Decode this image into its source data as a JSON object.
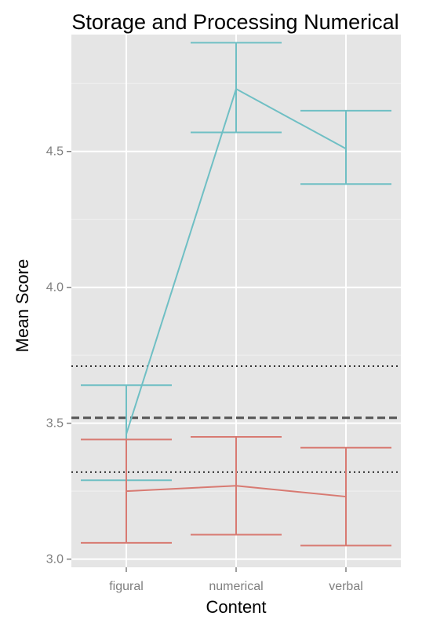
{
  "chart_data": {
    "type": "line",
    "title": "Storage and Processing Numerical",
    "xlabel": "Content",
    "ylabel": "Mean Score",
    "categories": [
      "figural",
      "numerical",
      "verbal"
    ],
    "ylim": [
      2.97,
      4.93
    ],
    "yticks": [
      3.0,
      3.5,
      4.0,
      4.5
    ],
    "ytick_labels": [
      "3.0",
      "3.5",
      "4.0",
      "4.5"
    ],
    "grid": true,
    "legend": "none",
    "series": [
      {
        "color": "#6fbfc4",
        "values": [
          3.46,
          4.73,
          4.51
        ],
        "lower": [
          3.29,
          4.57,
          4.38
        ],
        "upper": [
          3.64,
          4.9,
          4.65
        ]
      },
      {
        "color": "#d87a72",
        "values": [
          3.25,
          3.27,
          3.23
        ],
        "lower": [
          3.06,
          3.09,
          3.05
        ],
        "upper": [
          3.44,
          3.45,
          3.41
        ]
      }
    ],
    "reference_lines": [
      {
        "y": 3.52,
        "style": "dashed",
        "color": "#555555"
      },
      {
        "y": 3.71,
        "style": "dotted",
        "color": "#333333"
      },
      {
        "y": 3.32,
        "style": "dotted",
        "color": "#333333"
      }
    ],
    "panel_background": "#e5e5e5",
    "grid_color": "#ffffff"
  }
}
